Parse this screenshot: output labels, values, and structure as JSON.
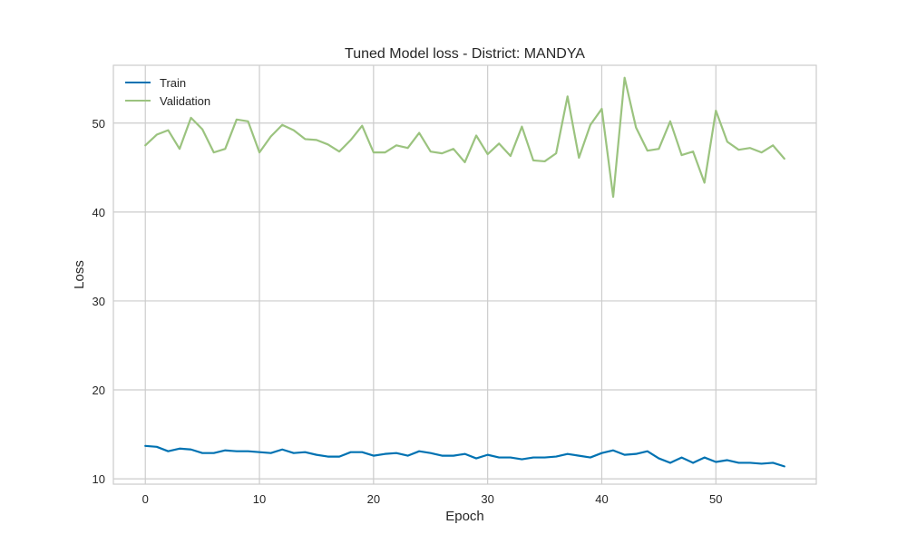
{
  "chart_data": {
    "type": "line",
    "title": "Tuned Model loss - District: MANDYA",
    "xlabel": "Epoch",
    "ylabel": "Loss",
    "xlim": [
      -2.8,
      58.8
    ],
    "ylim": [
      9.4,
      56.5
    ],
    "xticks": [
      0,
      10,
      20,
      30,
      40,
      50
    ],
    "yticks": [
      10,
      20,
      30,
      40,
      50
    ],
    "grid": true,
    "legend_position": "top-left",
    "x": [
      0,
      1,
      2,
      3,
      4,
      5,
      6,
      7,
      8,
      9,
      10,
      11,
      12,
      13,
      14,
      15,
      16,
      17,
      18,
      19,
      20,
      21,
      22,
      23,
      24,
      25,
      26,
      27,
      28,
      29,
      30,
      31,
      32,
      33,
      34,
      35,
      36,
      37,
      38,
      39,
      40,
      41,
      42,
      43,
      44,
      45,
      46,
      47,
      48,
      49,
      50,
      51,
      52,
      53,
      54,
      55,
      56
    ],
    "series": [
      {
        "name": "Train",
        "color": "#0072b2",
        "values": [
          13.7,
          13.6,
          13.1,
          13.4,
          13.3,
          12.9,
          12.9,
          13.2,
          13.1,
          13.1,
          13.0,
          12.9,
          13.3,
          12.9,
          13.0,
          12.7,
          12.5,
          12.5,
          13.0,
          13.0,
          12.6,
          12.8,
          12.9,
          12.6,
          13.1,
          12.9,
          12.6,
          12.6,
          12.8,
          12.3,
          12.7,
          12.4,
          12.4,
          12.2,
          12.4,
          12.4,
          12.5,
          12.8,
          12.6,
          12.4,
          12.9,
          13.2,
          12.7,
          12.8,
          13.1,
          12.3,
          11.8,
          12.4,
          11.8,
          12.4,
          11.9,
          12.1,
          11.8,
          11.8,
          11.7,
          11.8,
          11.4
        ]
      },
      {
        "name": "Validation",
        "color": "#9bc37f",
        "values": [
          47.5,
          48.7,
          49.2,
          47.1,
          50.6,
          49.3,
          46.7,
          47.1,
          50.4,
          50.2,
          46.7,
          48.5,
          49.8,
          49.2,
          48.2,
          48.1,
          47.6,
          46.8,
          48.1,
          49.7,
          46.7,
          46.7,
          47.5,
          47.2,
          48.9,
          46.8,
          46.6,
          47.1,
          45.6,
          48.6,
          46.5,
          47.7,
          46.3,
          49.6,
          45.8,
          45.7,
          46.6,
          53.0,
          46.1,
          49.8,
          51.6,
          41.7,
          55.1,
          49.5,
          46.9,
          47.1,
          50.2,
          46.4,
          46.8,
          43.3,
          51.4,
          47.9,
          47.0,
          47.2,
          46.7,
          47.5,
          46.0
        ]
      }
    ]
  }
}
